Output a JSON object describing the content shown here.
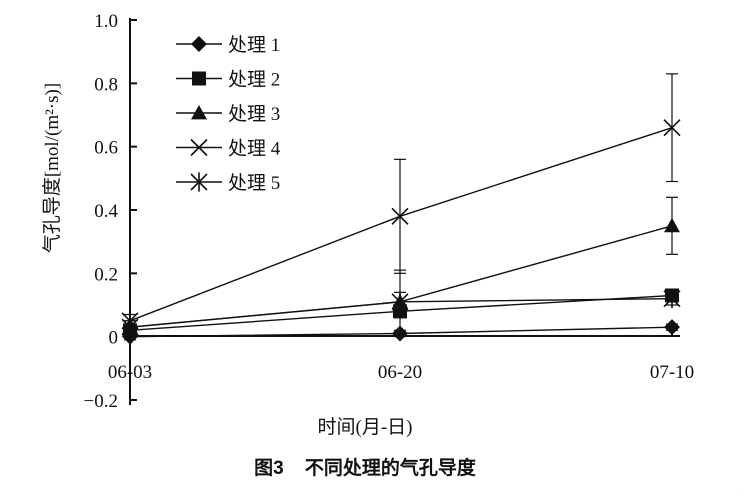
{
  "chart_data": {
    "type": "line",
    "x_categories": [
      "06-03",
      "06-20",
      "07-10"
    ],
    "ylabel": "气孔导度[mol/(m²·s)]",
    "xlabel": "时间(月-日)",
    "ylim": [
      -0.2,
      1.0
    ],
    "y_ticks": [
      "1.0",
      "0.8",
      "0.6",
      "0.4",
      "0.2",
      "0",
      "−0.2"
    ],
    "legend_position": "top-left",
    "series": [
      {
        "name": "处理 1",
        "marker": "diamond",
        "values": [
          0.0,
          0.01,
          0.03
        ],
        "err": [
          0.01,
          0.01,
          0.01
        ]
      },
      {
        "name": "处理 2",
        "marker": "square",
        "values": [
          0.02,
          0.08,
          0.13
        ],
        "err": [
          0.01,
          0.02,
          0.02
        ]
      },
      {
        "name": "处理 3",
        "marker": "triangle",
        "values": [
          0.03,
          0.11,
          0.35
        ],
        "err": [
          0.02,
          0.1,
          0.09
        ]
      },
      {
        "name": "处理 4",
        "marker": "x",
        "values": [
          0.05,
          0.38,
          0.66
        ],
        "err": [
          0.02,
          0.18,
          0.17
        ]
      },
      {
        "name": "处理 5",
        "marker": "star",
        "values": [
          0.03,
          0.11,
          0.12
        ],
        "err": [
          0.02,
          0.03,
          0.02
        ]
      }
    ],
    "caption": "图3    不同处理的气孔导度"
  }
}
